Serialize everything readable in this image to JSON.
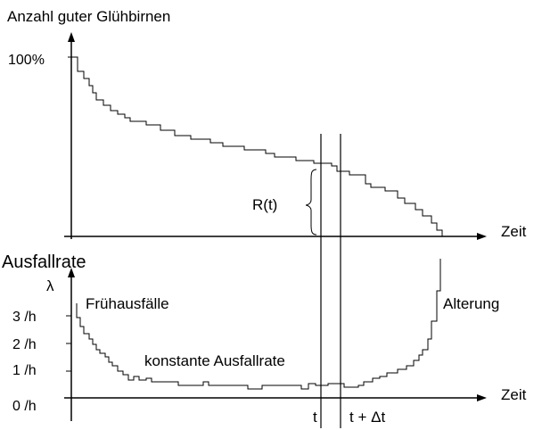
{
  "top_chart": {
    "ylabel": "Anzahl guter Glühbirnen",
    "y_tick": "100%",
    "xlabel": "Zeit",
    "bracket_label": "R(t)"
  },
  "bottom_chart": {
    "title": "Ausfallrate",
    "y_symbol": "λ",
    "y_ticks": [
      "3 /h",
      "2 /h",
      "1 /h",
      "0 /h"
    ],
    "xlabel": "Zeit",
    "annotations": {
      "early": "Frühausfälle",
      "constant": "konstante Ausfallrate",
      "aging": "Alterung"
    }
  },
  "time_markers": {
    "t_label": "t",
    "t_plus_label": "t + Δt"
  }
}
